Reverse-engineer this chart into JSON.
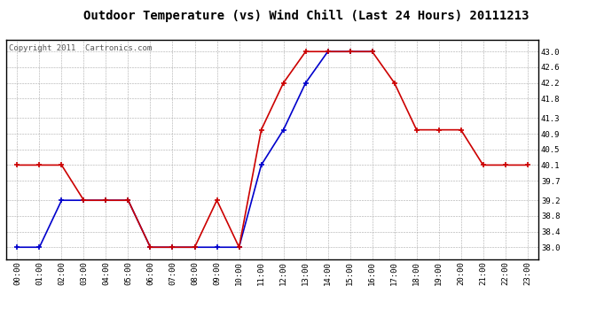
{
  "title": "Outdoor Temperature (vs) Wind Chill (Last 24 Hours) 20111213",
  "copyright": "Copyright 2011  Cartronics.com",
  "x_labels": [
    "00:00",
    "01:00",
    "02:00",
    "03:00",
    "04:00",
    "05:00",
    "06:00",
    "07:00",
    "08:00",
    "09:00",
    "10:00",
    "11:00",
    "12:00",
    "13:00",
    "14:00",
    "15:00",
    "16:00",
    "17:00",
    "18:00",
    "19:00",
    "20:00",
    "21:00",
    "22:00",
    "23:00"
  ],
  "red_values": [
    40.1,
    40.1,
    40.1,
    39.2,
    39.2,
    39.2,
    38.0,
    38.0,
    38.0,
    39.2,
    38.0,
    41.0,
    42.2,
    43.0,
    43.0,
    43.0,
    43.0,
    42.2,
    41.0,
    41.0,
    41.0,
    40.1,
    40.1,
    40.1
  ],
  "blue_values": [
    38.0,
    38.0,
    39.2,
    39.2,
    39.2,
    39.2,
    38.0,
    38.0,
    38.0,
    38.0,
    38.0,
    40.1,
    41.0,
    42.2,
    43.0,
    43.0,
    43.0,
    null,
    null,
    null,
    null,
    null,
    null,
    null
  ],
  "ylim_low": 37.7,
  "ylim_high": 43.3,
  "ytick_values": [
    38.0,
    38.4,
    38.8,
    39.2,
    39.7,
    40.1,
    40.5,
    40.9,
    41.3,
    41.8,
    42.2,
    42.6,
    43.0
  ],
  "ytick_labels": [
    "38.0",
    "38.4",
    "38.8",
    "39.2",
    "39.7",
    "40.1",
    "40.5",
    "40.9",
    "41.3",
    "41.8",
    "42.2",
    "42.6",
    "43.0"
  ],
  "red_color": "#cc0000",
  "blue_color": "#0000cc",
  "bg_color": "#ffffff",
  "grid_color": "#aaaaaa",
  "title_fontsize": 10,
  "copyright_fontsize": 6.5,
  "tick_fontsize": 6.5,
  "line_width": 1.2,
  "marker_size": 4
}
